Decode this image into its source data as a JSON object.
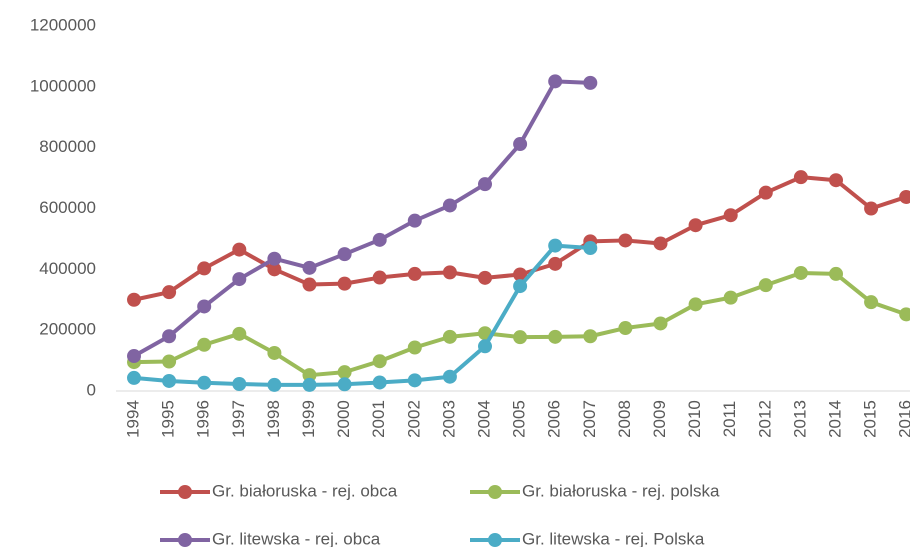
{
  "chart_data": {
    "type": "line",
    "categories": [
      "1994",
      "1995",
      "1996",
      "1997",
      "1998",
      "1999",
      "2000",
      "2001",
      "2002",
      "2003",
      "2004",
      "2005",
      "2006",
      "2007",
      "2008",
      "2009",
      "2010",
      "2011",
      "2012",
      "2013",
      "2014",
      "2015",
      "2016"
    ],
    "series": [
      {
        "name": "Gr. białoruska - rej. obca",
        "color": "#c0504d",
        "values": [
          300000,
          325000,
          403000,
          465000,
          400000,
          350000,
          353000,
          373000,
          385000,
          390000,
          372000,
          383000,
          418000,
          492000,
          495000,
          485000,
          545000,
          578000,
          652000,
          703000,
          693000,
          600000,
          638000
        ]
      },
      {
        "name": "Gr. białoruska - rej. polska",
        "color": "#9bbb59",
        "values": [
          95000,
          97000,
          152000,
          188000,
          125000,
          52000,
          62000,
          98000,
          143000,
          178000,
          190000,
          177000,
          178000,
          180000,
          207000,
          222000,
          285000,
          307000,
          348000,
          388000,
          385000,
          292000,
          252000
        ]
      },
      {
        "name": "Gr. litewska - rej. obca",
        "color": "#8064a2",
        "values": [
          115000,
          180000,
          278000,
          368000,
          435000,
          405000,
          450000,
          497000,
          560000,
          610000,
          680000,
          812000,
          1018000,
          1013000,
          null,
          null,
          null,
          null,
          null,
          null,
          null,
          null,
          null
        ]
      },
      {
        "name": "Gr. litewska - rej. Polska",
        "color": "#4bacc6",
        "values": [
          43000,
          33000,
          27000,
          23000,
          20000,
          20000,
          22000,
          28000,
          35000,
          47000,
          147000,
          345000,
          478000,
          470000,
          null,
          null,
          null,
          null,
          null,
          null,
          null,
          null,
          null
        ]
      }
    ],
    "ylim": [
      0,
      1200000
    ],
    "yticks": [
      0,
      200000,
      400000,
      600000,
      800000,
      1000000,
      1200000
    ],
    "grid": false,
    "legend": "bottom"
  }
}
